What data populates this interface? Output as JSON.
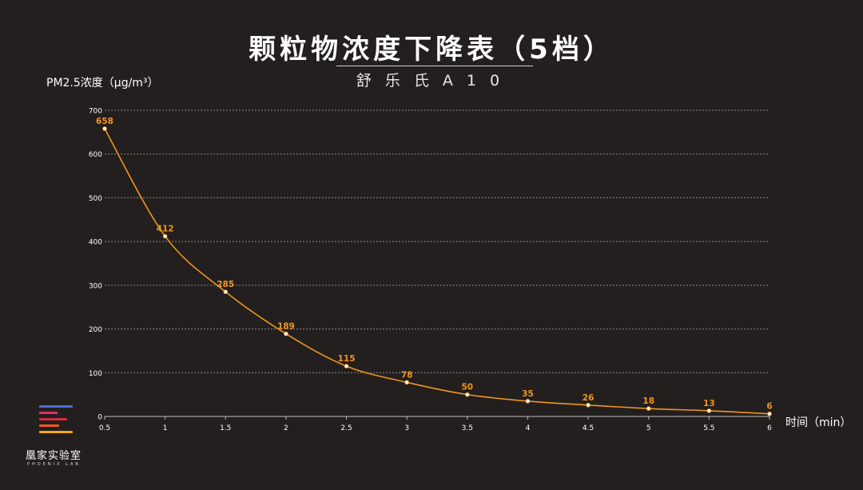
{
  "chart_data": {
    "type": "line",
    "title": "颗粒物浓度下降表（5档）",
    "subtitle": "舒乐氏A10",
    "xlabel": "时间（min）",
    "ylabel": "PM2.5浓度（μg/m³）",
    "x": [
      0.5,
      1,
      1.5,
      2,
      2.5,
      3,
      3.5,
      4,
      4.5,
      5,
      5.5,
      6
    ],
    "x_tick_labels": [
      "0.5",
      "1",
      "1.5",
      "2",
      "2.5",
      "3",
      "3.5",
      "4",
      "4.5",
      "5",
      "5.5",
      "6"
    ],
    "y_ticks": [
      0,
      100,
      200,
      300,
      400,
      500,
      600,
      700
    ],
    "series": [
      {
        "values": [
          658,
          412,
          285,
          189,
          115,
          78,
          50,
          35,
          26,
          18,
          13,
          6
        ]
      }
    ],
    "xlim": [
      0.5,
      6
    ],
    "ylim": [
      0,
      700
    ],
    "grid": true,
    "legend": "none",
    "line_color": "#f0961e",
    "label_color": "#f0961e",
    "point_color": "#ffffff"
  },
  "logo": {
    "name": "凰家实验室",
    "subname": "PHOENIX LAB",
    "bar_colors": [
      "#4a6fd8",
      "#e0316e",
      "#d42b3c",
      "#ec5a24",
      "#f5a51c"
    ]
  }
}
